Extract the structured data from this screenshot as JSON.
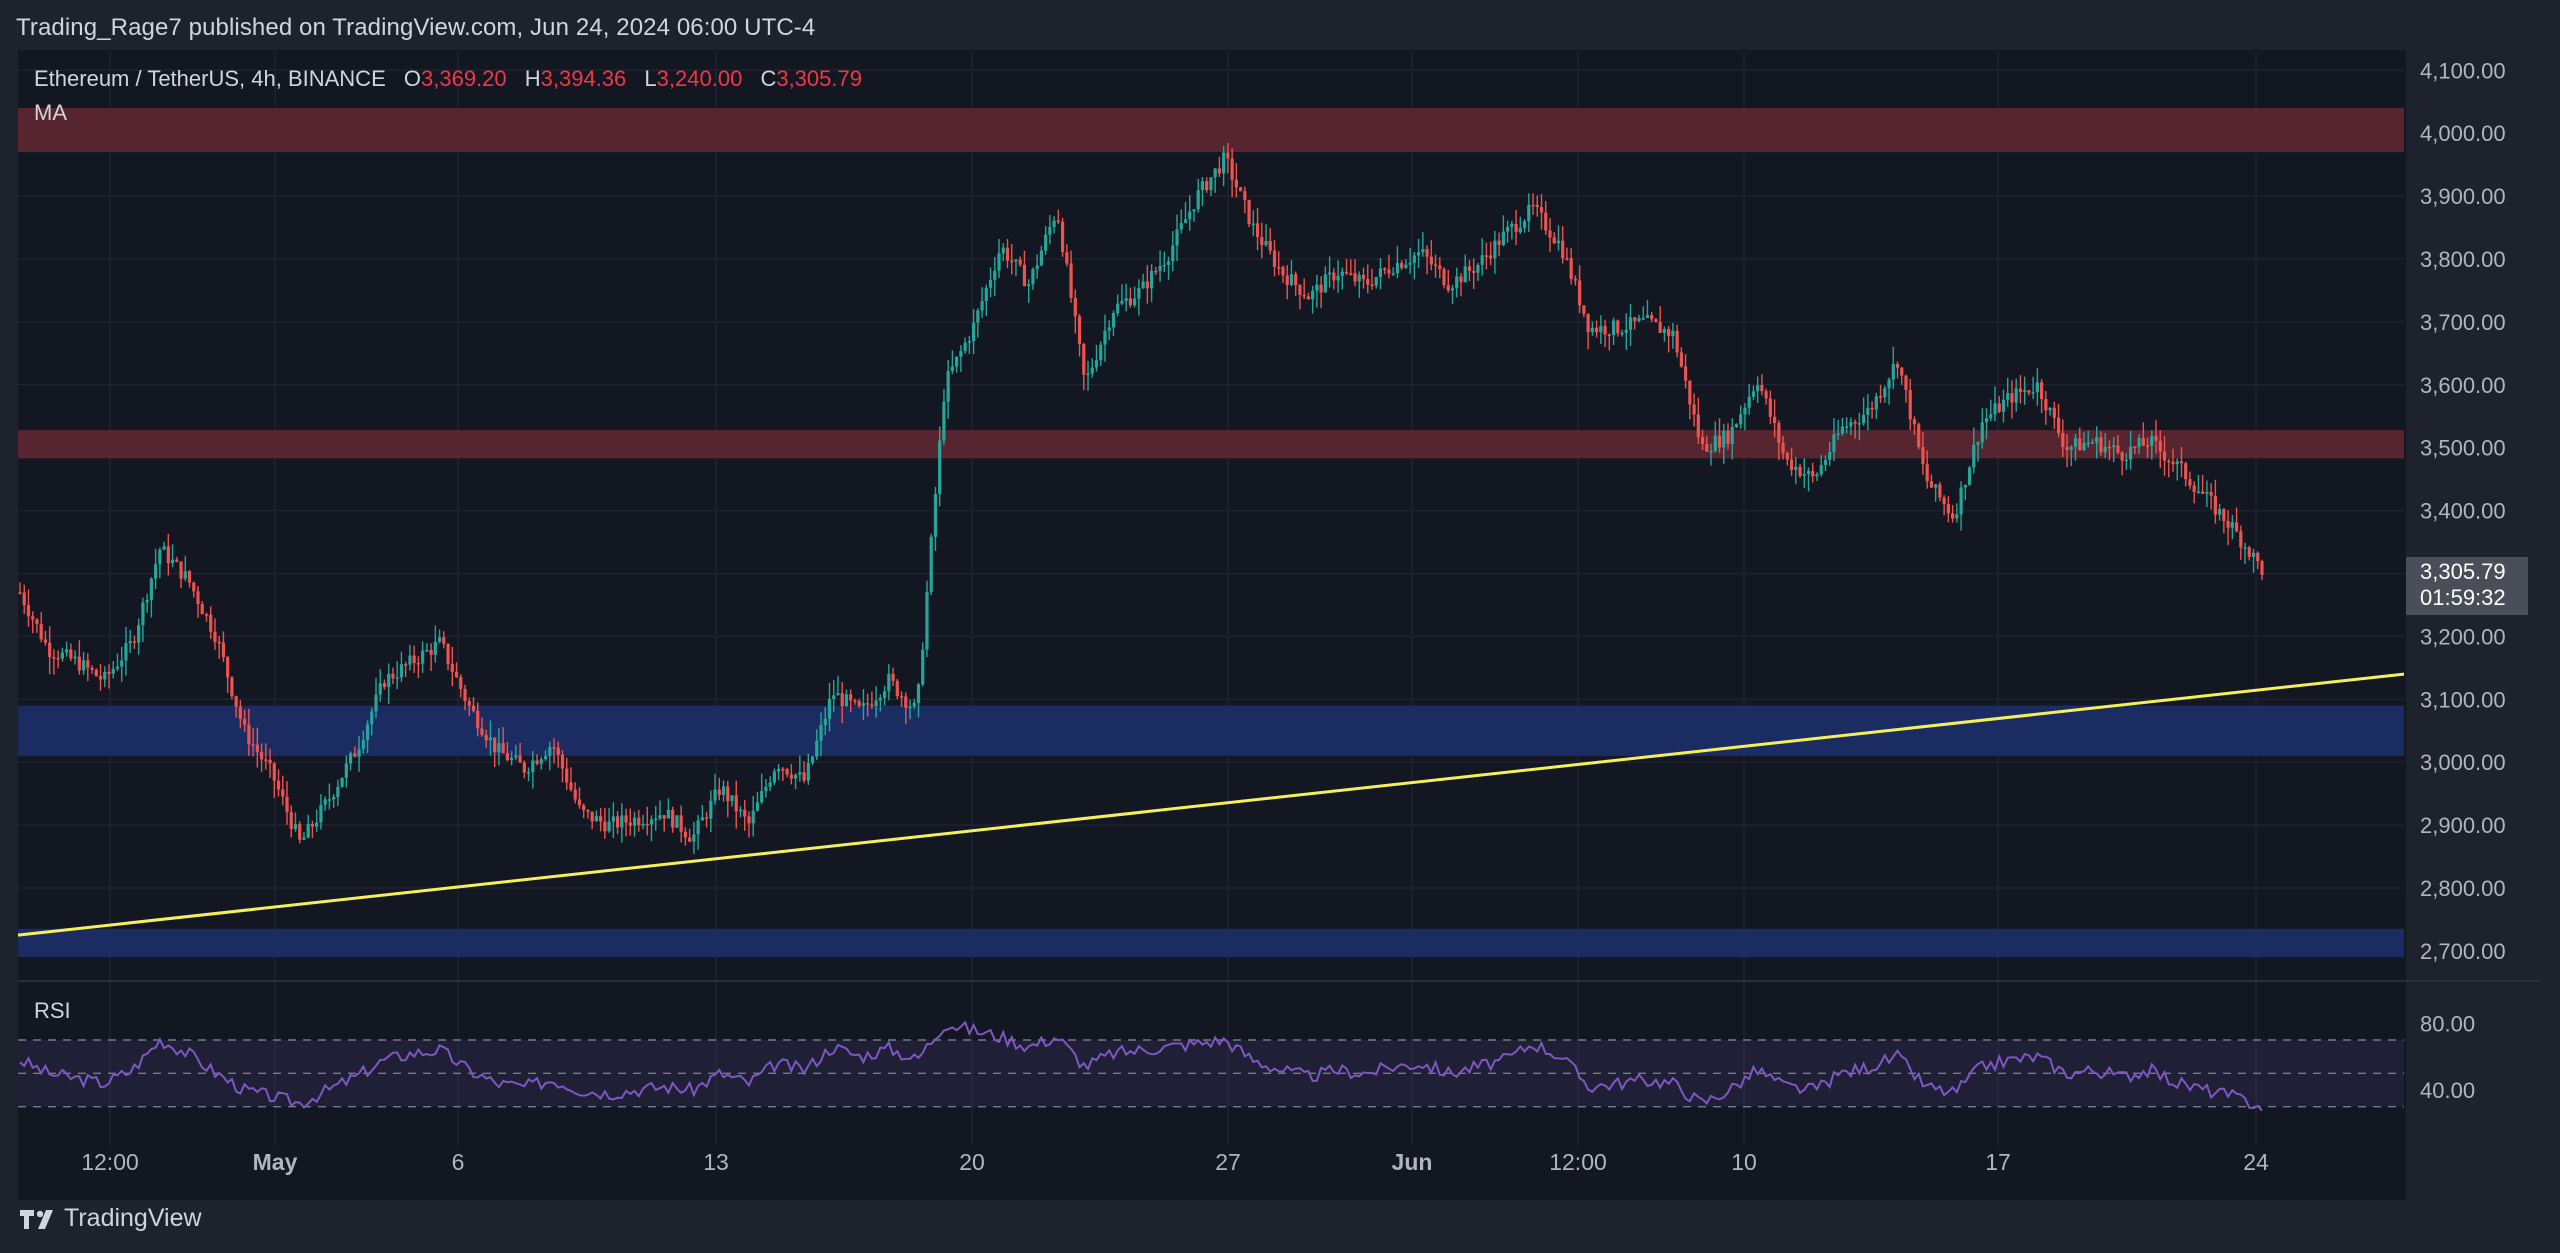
{
  "attribution": "Trading_Rage7 published on TradingView.com, Jun 24, 2024 06:00 UTC-4",
  "legend": {
    "symbol": "Ethereum / TetherUS, 4h, BINANCE",
    "o_label": "O",
    "o_value": "3,369.20",
    "h_label": "H",
    "h_value": "3,394.36",
    "l_label": "L",
    "l_value": "3,240.00",
    "c_label": "C",
    "c_value": "3,305.79",
    "ma_label": "MA"
  },
  "rsi_label": "RSI",
  "last_price": {
    "price": "3,305.79",
    "countdown": "01:59:32"
  },
  "brand": "TradingView",
  "colors": {
    "up": "#26a69a",
    "down": "#ef5350",
    "resistance_zone": "#5b2630",
    "support_zone": "#1b2d66",
    "trendline": "#f5f05a",
    "rsi_line": "#7e57c2",
    "rsi_band": "#7e57c2"
  },
  "chart_data": {
    "type": "candlestick",
    "timeframe": "4h",
    "price_axis": {
      "min": 2660,
      "max": 4110,
      "ticks": [
        "4,100.00",
        "4,000.00",
        "3,900.00",
        "3,800.00",
        "3,700.00",
        "3,600.00",
        "3,500.00",
        "3,400.00",
        "3,300.00",
        "3,200.00",
        "3,100.00",
        "3,000.00",
        "2,900.00",
        "2,800.00",
        "2,700.00"
      ]
    },
    "time_axis": {
      "labels": [
        "12:00",
        "May",
        "6",
        "13",
        "20",
        "27",
        "Jun",
        "12:00",
        "10",
        "17",
        "24"
      ]
    },
    "zones": [
      {
        "kind": "resistance",
        "from": 3970,
        "to": 4040
      },
      {
        "kind": "resistance",
        "from": 3483,
        "to": 3528
      },
      {
        "kind": "support",
        "from": 3010,
        "to": 3090
      },
      {
        "kind": "support",
        "from": 2690,
        "to": 2735
      }
    ],
    "trendline": {
      "from_price": 2725,
      "to_price": 3140
    },
    "price_path": [
      3270,
      3180,
      3160,
      3130,
      3190,
      3340,
      3290,
      3200,
      3050,
      2980,
      2870,
      2940,
      3020,
      3130,
      3160,
      3190,
      3090,
      3020,
      2990,
      3030,
      2920,
      2900,
      2910,
      2920,
      2880,
      2960,
      2900,
      3000,
      2970,
      3110,
      3080,
      3130,
      3080,
      3600,
      3690,
      3820,
      3760,
      3880,
      3600,
      3720,
      3750,
      3810,
      3900,
      3960,
      3850,
      3780,
      3740,
      3780,
      3760,
      3790,
      3810,
      3760,
      3790,
      3840,
      3880,
      3820,
      3690,
      3690,
      3700,
      3680,
      3500,
      3520,
      3610,
      3480,
      3450,
      3530,
      3560,
      3640,
      3450,
      3390,
      3540,
      3580,
      3600,
      3500,
      3510,
      3490,
      3510,
      3470,
      3420,
      3370,
      3306
    ],
    "rsi": {
      "levels": [
        "80.00",
        "40.00"
      ],
      "upper": 70,
      "lower": 30,
      "values": [
        58,
        50,
        47,
        44,
        52,
        70,
        62,
        50,
        40,
        36,
        32,
        40,
        48,
        58,
        62,
        64,
        52,
        44,
        42,
        46,
        40,
        38,
        40,
        42,
        40,
        50,
        44,
        56,
        52,
        66,
        60,
        65,
        58,
        80,
        76,
        72,
        66,
        72,
        54,
        62,
        64,
        66,
        68,
        70,
        58,
        52,
        48,
        52,
        50,
        54,
        56,
        50,
        54,
        58,
        68,
        60,
        42,
        44,
        46,
        44,
        32,
        40,
        52,
        42,
        40,
        50,
        54,
        60,
        42,
        38,
        54,
        58,
        60,
        50,
        52,
        48,
        52,
        44,
        40,
        36,
        30
      ]
    }
  }
}
